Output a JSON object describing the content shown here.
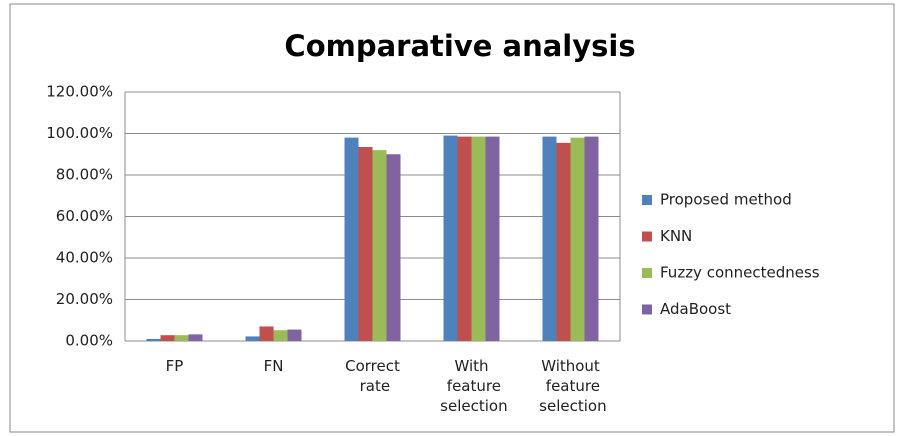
{
  "chart_data": {
    "type": "bar",
    "title": "Comparative analysis",
    "categories": [
      "FP",
      "FN",
      "Correct rate",
      "With feature selection",
      "Without feature selection"
    ],
    "series": [
      {
        "name": "Proposed method",
        "color": "#4f81bd",
        "values": [
          1,
          2.2,
          98,
          99,
          98.5
        ]
      },
      {
        "name": "KNN",
        "color": "#c0504d",
        "values": [
          2.8,
          7,
          93.5,
          98.5,
          95.5
        ]
      },
      {
        "name": "Fuzzy connectedness",
        "color": "#9bbb59",
        "values": [
          2.8,
          5.2,
          92,
          98.5,
          98
        ]
      },
      {
        "name": "AdaBoost",
        "color": "#8064a2",
        "values": [
          3.2,
          5.5,
          90,
          98.5,
          98.5
        ]
      }
    ],
    "ylim": [
      0,
      120
    ],
    "yticks": [
      {
        "value": 0,
        "label": "0.00%"
      },
      {
        "value": 20,
        "label": "20.00%"
      },
      {
        "value": 40,
        "label": "40.00%"
      },
      {
        "value": 60,
        "label": "60.00%"
      },
      {
        "value": 80,
        "label": "80.00%"
      },
      {
        "value": 100,
        "label": "100.00%"
      },
      {
        "value": 120,
        "label": "120.00%"
      }
    ],
    "grid": true,
    "legend": "right"
  }
}
